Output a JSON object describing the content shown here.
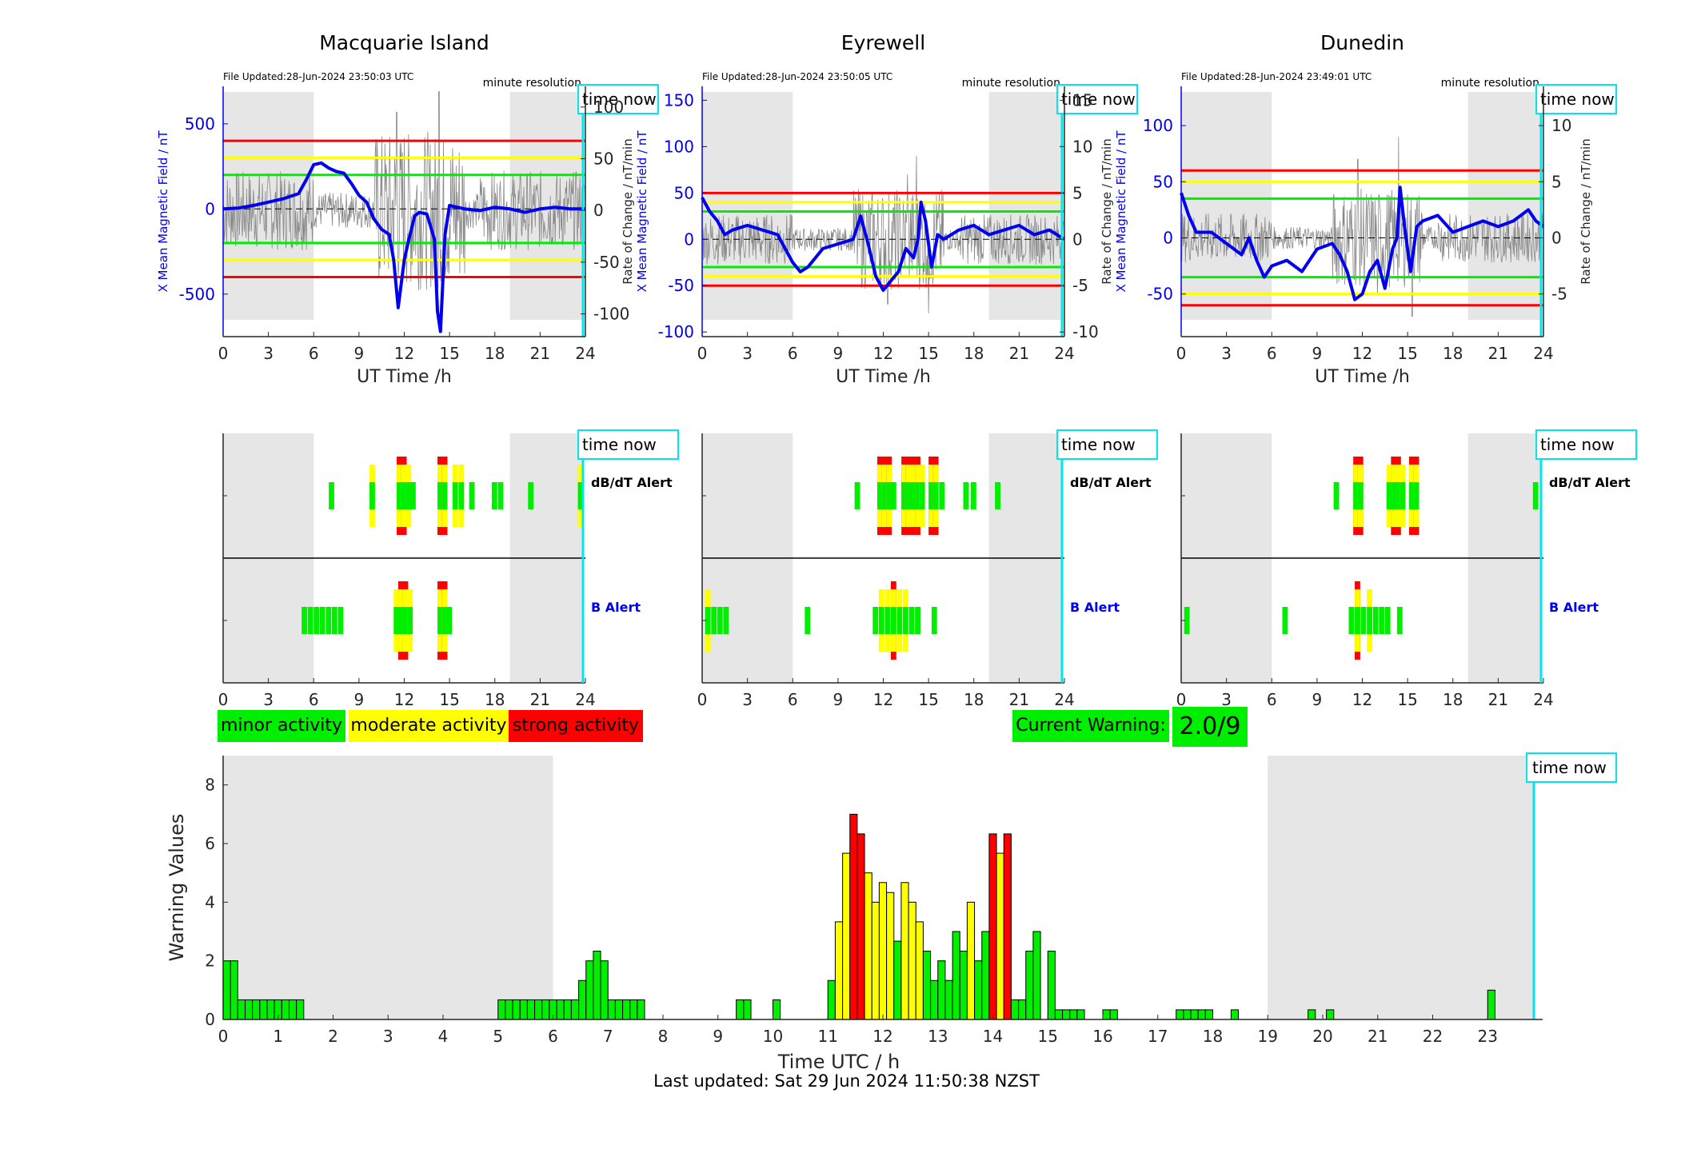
{
  "colors": {
    "minor": "#00ee00",
    "moderate": "#ffff00",
    "strong": "#ff0000",
    "field_line": "#0000ee",
    "rate_line": "#888888",
    "time_now_line": "#00e5ee",
    "night_shade": "#e6e6e6",
    "threshold_green": "#00ee00",
    "threshold_yellow": "#ffff00",
    "threshold_red": "#ff0000"
  },
  "labels": {
    "ut_time": "UT Time /h",
    "time_utc": "Time UTC / h",
    "warning_values": "Warning Values",
    "time_now": "time now",
    "minute_resolution": "minute resolution",
    "dbdt_alert": "dB/dT Alert",
    "b_alert": "B Alert",
    "rate_ylabel": "Rate of Change / nT/min",
    "field_ylabel": "X Mean Magnetic Field / nT"
  },
  "legend": {
    "minor": "minor activity",
    "moderate": "moderate activity",
    "strong": "strong activity",
    "current_warning_label": "Current Warning:",
    "current_warning_value": "2.0/9"
  },
  "footer": "Last updated: Sat 29 Jun 2024 11:50:38 NZST",
  "stations": [
    {
      "name": "Macquarie Island",
      "file_updated": "File Updated:28-Jun-2024 23:50:03 UTC",
      "left_ticks": [
        -500,
        0,
        500
      ],
      "left_lim": [
        -750,
        720
      ],
      "right_ticks": [
        -100,
        -50,
        0,
        50,
        100
      ],
      "right_lim": [
        -122,
        120
      ],
      "thresholds": {
        "green": 200,
        "yellow": 300,
        "red": 400
      },
      "field": [
        [
          0,
          0
        ],
        [
          1,
          5
        ],
        [
          2,
          20
        ],
        [
          3,
          40
        ],
        [
          4,
          60
        ],
        [
          5,
          90
        ],
        [
          5.5,
          170
        ],
        [
          6,
          260
        ],
        [
          6.5,
          270
        ],
        [
          7,
          240
        ],
        [
          7.5,
          220
        ],
        [
          8,
          210
        ],
        [
          8.5,
          150
        ],
        [
          9,
          80
        ],
        [
          9.5,
          40
        ],
        [
          10,
          -60
        ],
        [
          10.5,
          -120
        ],
        [
          11,
          -150
        ],
        [
          11.3,
          -300
        ],
        [
          11.6,
          -580
        ],
        [
          12,
          -300
        ],
        [
          12.3,
          -180
        ],
        [
          12.7,
          -40
        ],
        [
          13,
          -20
        ],
        [
          13.5,
          -30
        ],
        [
          14,
          -180
        ],
        [
          14.2,
          -600
        ],
        [
          14.4,
          -720
        ],
        [
          14.7,
          -150
        ],
        [
          15,
          20
        ],
        [
          15.5,
          10
        ],
        [
          16,
          0
        ],
        [
          17,
          -10
        ],
        [
          18,
          10
        ],
        [
          19,
          0
        ],
        [
          20,
          -20
        ],
        [
          21,
          0
        ],
        [
          22,
          10
        ],
        [
          23,
          0
        ],
        [
          24,
          0
        ]
      ],
      "rate_amp": 35,
      "rate_spikes": [
        [
          11.5,
          95
        ],
        [
          12,
          70
        ],
        [
          14.3,
          115
        ],
        [
          14.5,
          -80
        ]
      ],
      "dbdt": [
        [
          7,
          "g"
        ],
        [
          9.7,
          "y"
        ],
        [
          11.5,
          "r"
        ],
        [
          11.8,
          "r"
        ],
        [
          12.1,
          "y"
        ],
        [
          12.4,
          "g"
        ],
        [
          14.2,
          "r"
        ],
        [
          14.5,
          "r"
        ],
        [
          15.2,
          "y"
        ],
        [
          15.6,
          "y"
        ],
        [
          16.3,
          "g"
        ],
        [
          17.8,
          "g"
        ],
        [
          18.2,
          "g"
        ],
        [
          20.2,
          "g"
        ],
        [
          23.5,
          "y"
        ]
      ],
      "balert": [
        [
          5.2,
          "g"
        ],
        [
          5.6,
          "g"
        ],
        [
          6,
          "g"
        ],
        [
          6.4,
          "g"
        ],
        [
          6.8,
          "g"
        ],
        [
          7.2,
          "g"
        ],
        [
          7.6,
          "g"
        ],
        [
          11.3,
          "y"
        ],
        [
          11.6,
          "r"
        ],
        [
          11.9,
          "r"
        ],
        [
          12.2,
          "y"
        ],
        [
          14.2,
          "r"
        ],
        [
          14.5,
          "r"
        ],
        [
          14.8,
          "g"
        ]
      ]
    },
    {
      "name": "Eyrewell",
      "file_updated": "File Updated:28-Jun-2024 23:50:05 UTC",
      "left_ticks": [
        -100,
        -50,
        0,
        50,
        100,
        150
      ],
      "left_lim": [
        -105,
        165
      ],
      "right_ticks": [
        -10,
        -5,
        0,
        5,
        10,
        15
      ],
      "right_lim": [
        -10.5,
        16.5
      ],
      "thresholds": {
        "green": 30,
        "yellow": 40,
        "red": 50
      },
      "field": [
        [
          0,
          45
        ],
        [
          0.5,
          30
        ],
        [
          1,
          20
        ],
        [
          1.5,
          5
        ],
        [
          2,
          10
        ],
        [
          3,
          15
        ],
        [
          4,
          10
        ],
        [
          5,
          5
        ],
        [
          5.5,
          -10
        ],
        [
          6,
          -25
        ],
        [
          6.5,
          -35
        ],
        [
          7,
          -30
        ],
        [
          7.5,
          -20
        ],
        [
          8,
          -10
        ],
        [
          9,
          -5
        ],
        [
          10,
          0
        ],
        [
          10.5,
          25
        ],
        [
          11,
          -5
        ],
        [
          11.5,
          -40
        ],
        [
          12,
          -55
        ],
        [
          12.5,
          -45
        ],
        [
          13,
          -35
        ],
        [
          13.5,
          -10
        ],
        [
          14,
          -20
        ],
        [
          14.3,
          0
        ],
        [
          14.5,
          40
        ],
        [
          14.8,
          20
        ],
        [
          15.2,
          -30
        ],
        [
          15.6,
          5
        ],
        [
          16,
          0
        ],
        [
          17,
          10
        ],
        [
          18,
          15
        ],
        [
          19,
          5
        ],
        [
          20,
          10
        ],
        [
          21,
          15
        ],
        [
          22,
          5
        ],
        [
          23,
          10
        ],
        [
          23.5,
          5
        ],
        [
          24,
          0
        ]
      ],
      "rate_amp": 2.5,
      "rate_spikes": [
        [
          12.3,
          -7
        ],
        [
          14.2,
          9
        ],
        [
          15,
          -8
        ],
        [
          13.6,
          7
        ]
      ],
      "dbdt": [
        [
          10.1,
          "g"
        ],
        [
          11.6,
          "r"
        ],
        [
          11.9,
          "r"
        ],
        [
          12.2,
          "r"
        ],
        [
          12.5,
          "g"
        ],
        [
          13.2,
          "r"
        ],
        [
          13.5,
          "r"
        ],
        [
          13.8,
          "r"
        ],
        [
          14.1,
          "r"
        ],
        [
          14.4,
          "y"
        ],
        [
          15,
          "r"
        ],
        [
          15.3,
          "r"
        ],
        [
          15.7,
          "g"
        ],
        [
          17.3,
          "g"
        ],
        [
          17.8,
          "g"
        ],
        [
          19.4,
          "g"
        ]
      ],
      "balert": [
        [
          0.2,
          "y"
        ],
        [
          0.6,
          "g"
        ],
        [
          1.0,
          "g"
        ],
        [
          1.4,
          "g"
        ],
        [
          6.8,
          "g"
        ],
        [
          11.3,
          "g"
        ],
        [
          11.7,
          "y"
        ],
        [
          12.1,
          "y"
        ],
        [
          12.5,
          "r"
        ],
        [
          12.9,
          "y"
        ],
        [
          13.3,
          "y"
        ],
        [
          13.7,
          "g"
        ],
        [
          14.1,
          "g"
        ],
        [
          15.2,
          "g"
        ]
      ]
    },
    {
      "name": "Dunedin",
      "file_updated": "File Updated:28-Jun-2024 23:49:01 UTC",
      "left_ticks": [
        -50,
        0,
        50,
        100
      ],
      "left_lim": [
        -88,
        135
      ],
      "right_ticks": [
        -5,
        0,
        5,
        10
      ],
      "right_lim": [
        -8.8,
        13.5
      ],
      "thresholds": {
        "green": 35,
        "yellow": 50,
        "red": 60
      },
      "field": [
        [
          0,
          40
        ],
        [
          0.5,
          20
        ],
        [
          1,
          5
        ],
        [
          2,
          5
        ],
        [
          3,
          -5
        ],
        [
          4,
          -15
        ],
        [
          4.5,
          0
        ],
        [
          5,
          -20
        ],
        [
          5.5,
          -35
        ],
        [
          6,
          -25
        ],
        [
          7,
          -20
        ],
        [
          8,
          -30
        ],
        [
          9,
          -10
        ],
        [
          10,
          -5
        ],
        [
          10.5,
          -15
        ],
        [
          11,
          -30
        ],
        [
          11.5,
          -55
        ],
        [
          12,
          -50
        ],
        [
          12.5,
          -30
        ],
        [
          13,
          -20
        ],
        [
          13.5,
          -45
        ],
        [
          14,
          -10
        ],
        [
          14.3,
          0
        ],
        [
          14.5,
          45
        ],
        [
          14.8,
          10
        ],
        [
          15.2,
          -30
        ],
        [
          15.6,
          10
        ],
        [
          16,
          15
        ],
        [
          17,
          20
        ],
        [
          18,
          5
        ],
        [
          19,
          10
        ],
        [
          20,
          15
        ],
        [
          21,
          10
        ],
        [
          22,
          15
        ],
        [
          23,
          25
        ],
        [
          23.5,
          15
        ],
        [
          24,
          10
        ]
      ],
      "rate_amp": 2,
      "rate_spikes": [
        [
          11.7,
          7
        ],
        [
          14.4,
          9
        ],
        [
          15.3,
          -7
        ],
        [
          13,
          -5
        ]
      ],
      "dbdt": [
        [
          10.1,
          "g"
        ],
        [
          11.4,
          "r"
        ],
        [
          11.7,
          "r"
        ],
        [
          13.6,
          "y"
        ],
        [
          13.9,
          "r"
        ],
        [
          14.2,
          "r"
        ],
        [
          14.5,
          "y"
        ],
        [
          15.1,
          "r"
        ],
        [
          15.4,
          "r"
        ],
        [
          23.3,
          "g"
        ]
      ],
      "balert": [
        [
          0.2,
          "g"
        ],
        [
          6.7,
          "g"
        ],
        [
          11.1,
          "g"
        ],
        [
          11.5,
          "r"
        ],
        [
          11.9,
          "g"
        ],
        [
          12.3,
          "y"
        ],
        [
          12.7,
          "g"
        ],
        [
          13.1,
          "g"
        ],
        [
          13.5,
          "g"
        ],
        [
          14.3,
          "g"
        ]
      ]
    }
  ],
  "chart_data": {
    "type": "bar",
    "title": "",
    "xlabel": "Time UTC / h",
    "ylabel": "Warning Values",
    "xlim": [
      0,
      24
    ],
    "ylim": [
      0,
      9
    ],
    "x_ticks": [
      0,
      1,
      2,
      3,
      4,
      5,
      6,
      7,
      8,
      9,
      10,
      11,
      12,
      13,
      14,
      15,
      16,
      17,
      18,
      19,
      20,
      21,
      22,
      23
    ],
    "y_ticks": [
      0,
      2,
      4,
      6,
      8
    ],
    "bar_width_h": 0.1333,
    "x": [
      0,
      0.133,
      0.267,
      0.4,
      0.533,
      0.667,
      0.8,
      0.933,
      1.067,
      1.2,
      1.333,
      5.0,
      5.133,
      5.267,
      5.4,
      5.533,
      5.667,
      5.8,
      5.933,
      6.067,
      6.2,
      6.333,
      6.467,
      6.6,
      6.733,
      6.867,
      7.0,
      7.133,
      7.267,
      7.4,
      7.533,
      9.333,
      9.467,
      10.0,
      11.0,
      11.133,
      11.267,
      11.4,
      11.533,
      11.667,
      11.8,
      11.933,
      12.067,
      12.2,
      12.333,
      12.467,
      12.6,
      12.733,
      12.867,
      13.0,
      13.133,
      13.267,
      13.4,
      13.533,
      13.667,
      13.8,
      13.933,
      14.067,
      14.2,
      14.333,
      14.467,
      14.6,
      14.733,
      15.0,
      15.133,
      15.267,
      15.4,
      15.533,
      16.0,
      16.133,
      17.333,
      17.467,
      17.6,
      17.733,
      17.867,
      18.333,
      19.733,
      20.067,
      23.0
    ],
    "values": [
      2,
      2,
      0.67,
      0.67,
      0.67,
      0.67,
      0.67,
      0.67,
      0.67,
      0.67,
      0.67,
      0.67,
      0.67,
      0.67,
      0.67,
      0.67,
      0.67,
      0.67,
      0.67,
      0.67,
      0.67,
      0.67,
      1.33,
      2,
      2.33,
      2,
      0.67,
      0.67,
      0.67,
      0.67,
      0.67,
      0.67,
      0.67,
      0.67,
      1.33,
      3.33,
      5.67,
      7,
      6.33,
      5,
      4,
      4.67,
      4.33,
      2.67,
      4.67,
      4,
      3.33,
      2.33,
      1.33,
      2,
      1.33,
      3,
      2.33,
      4,
      2,
      3,
      6.33,
      5.67,
      6.33,
      0.67,
      0.67,
      2.33,
      3,
      2.33,
      0.33,
      0.33,
      0.33,
      0.33,
      0.33,
      0.33,
      0.33,
      0.33,
      0.33,
      0.33,
      0.33,
      0.33,
      0.33,
      0.33,
      1
    ],
    "levels": [
      "g",
      "g",
      "g",
      "g",
      "g",
      "g",
      "g",
      "g",
      "g",
      "g",
      "g",
      "g",
      "g",
      "g",
      "g",
      "g",
      "g",
      "g",
      "g",
      "g",
      "g",
      "g",
      "g",
      "g",
      "g",
      "g",
      "g",
      "g",
      "g",
      "g",
      "g",
      "g",
      "g",
      "g",
      "g",
      "y",
      "y",
      "r",
      "r",
      "y",
      "y",
      "y",
      "y",
      "g",
      "y",
      "y",
      "y",
      "g",
      "g",
      "g",
      "g",
      "g",
      "g",
      "y",
      "g",
      "g",
      "r",
      "y",
      "r",
      "g",
      "g",
      "g",
      "g",
      "g",
      "g",
      "g",
      "g",
      "g",
      "g",
      "g",
      "g",
      "g",
      "g",
      "g",
      "g",
      "g",
      "g",
      "g",
      "g"
    ]
  }
}
